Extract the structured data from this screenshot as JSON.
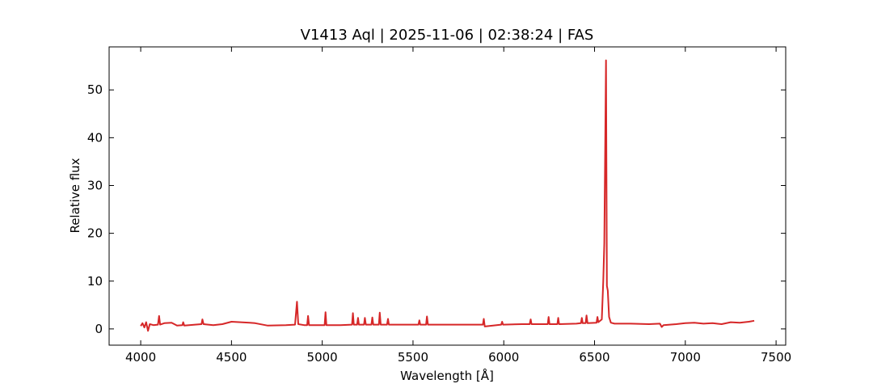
{
  "chart_data": {
    "type": "line",
    "title": "V1413 Aql | 2025-11-06 | 02:38:24 | FAS",
    "x_label": "Wavelength [Å]",
    "y_label": "Relative flux",
    "x": [
      4000,
      4010,
      4020,
      4030,
      4040,
      4050,
      4070,
      4095,
      4101,
      4107,
      4130,
      4170,
      4200,
      4230,
      4234,
      4240,
      4300,
      4335,
      4340,
      4346,
      4400,
      4450,
      4500,
      4550,
      4600,
      4630,
      4700,
      4800,
      4850,
      4861,
      4868,
      4900,
      4917,
      4922,
      4927,
      5000,
      5013,
      5018,
      5023,
      5100,
      5164,
      5169,
      5174,
      5192,
      5197,
      5202,
      5230,
      5235,
      5240,
      5271,
      5276,
      5281,
      5312,
      5317,
      5322,
      5357,
      5362,
      5367,
      5450,
      5530,
      5535,
      5540,
      5572,
      5577,
      5582,
      5700,
      5800,
      5885,
      5890,
      5895,
      5986,
      5991,
      5996,
      6100,
      6143,
      6148,
      6153,
      6242,
      6247,
      6252,
      6295,
      6300,
      6305,
      6400,
      6425,
      6430,
      6435,
      6451,
      6456,
      6461,
      6511,
      6516,
      6521,
      6540,
      6548,
      6554,
      6563,
      6568,
      6573,
      6580,
      6590,
      6610,
      6700,
      6800,
      6860,
      6870,
      6880,
      6950,
      7000,
      7050,
      7100,
      7150,
      7200,
      7250,
      7300,
      7350,
      7380
    ],
    "series": [
      {
        "color": "#d62728",
        "values": [
          0.6,
          1.2,
          0.3,
          1.4,
          -0.4,
          1.0,
          0.8,
          0.9,
          2.7,
          0.9,
          1.2,
          1.3,
          0.7,
          0.8,
          1.4,
          0.7,
          0.9,
          1.0,
          2.0,
          1.0,
          0.8,
          1.0,
          1.5,
          1.4,
          1.3,
          1.2,
          0.7,
          0.8,
          0.9,
          5.7,
          1.0,
          0.8,
          0.8,
          2.7,
          0.8,
          0.8,
          0.8,
          3.5,
          0.8,
          0.8,
          0.9,
          3.3,
          0.9,
          0.9,
          2.3,
          0.9,
          0.9,
          2.3,
          0.9,
          0.9,
          2.4,
          0.9,
          0.9,
          3.4,
          0.9,
          0.9,
          2.1,
          0.9,
          0.9,
          0.9,
          1.8,
          0.9,
          0.9,
          2.6,
          0.9,
          0.9,
          0.9,
          0.9,
          2.1,
          0.5,
          0.9,
          1.5,
          0.9,
          1.0,
          1.0,
          2.0,
          1.0,
          1.0,
          2.5,
          1.0,
          1.0,
          2.3,
          1.0,
          1.1,
          1.2,
          2.3,
          1.2,
          1.2,
          2.8,
          1.2,
          1.3,
          2.5,
          1.4,
          2.0,
          10,
          18,
          56.2,
          9,
          8,
          2.5,
          1.3,
          1.1,
          1.1,
          1.0,
          1.1,
          0.4,
          0.8,
          1.0,
          1.2,
          1.3,
          1.1,
          1.2,
          1.0,
          1.4,
          1.3,
          1.5,
          1.7
        ]
      }
    ],
    "xlim": [
      3826,
      7553
    ],
    "ylim": [
      -3.4,
      59
    ],
    "xticks": [
      4000,
      4500,
      5000,
      5500,
      6000,
      6500,
      7000,
      7500
    ],
    "yticks": [
      0,
      10,
      20,
      30,
      40,
      50
    ]
  }
}
